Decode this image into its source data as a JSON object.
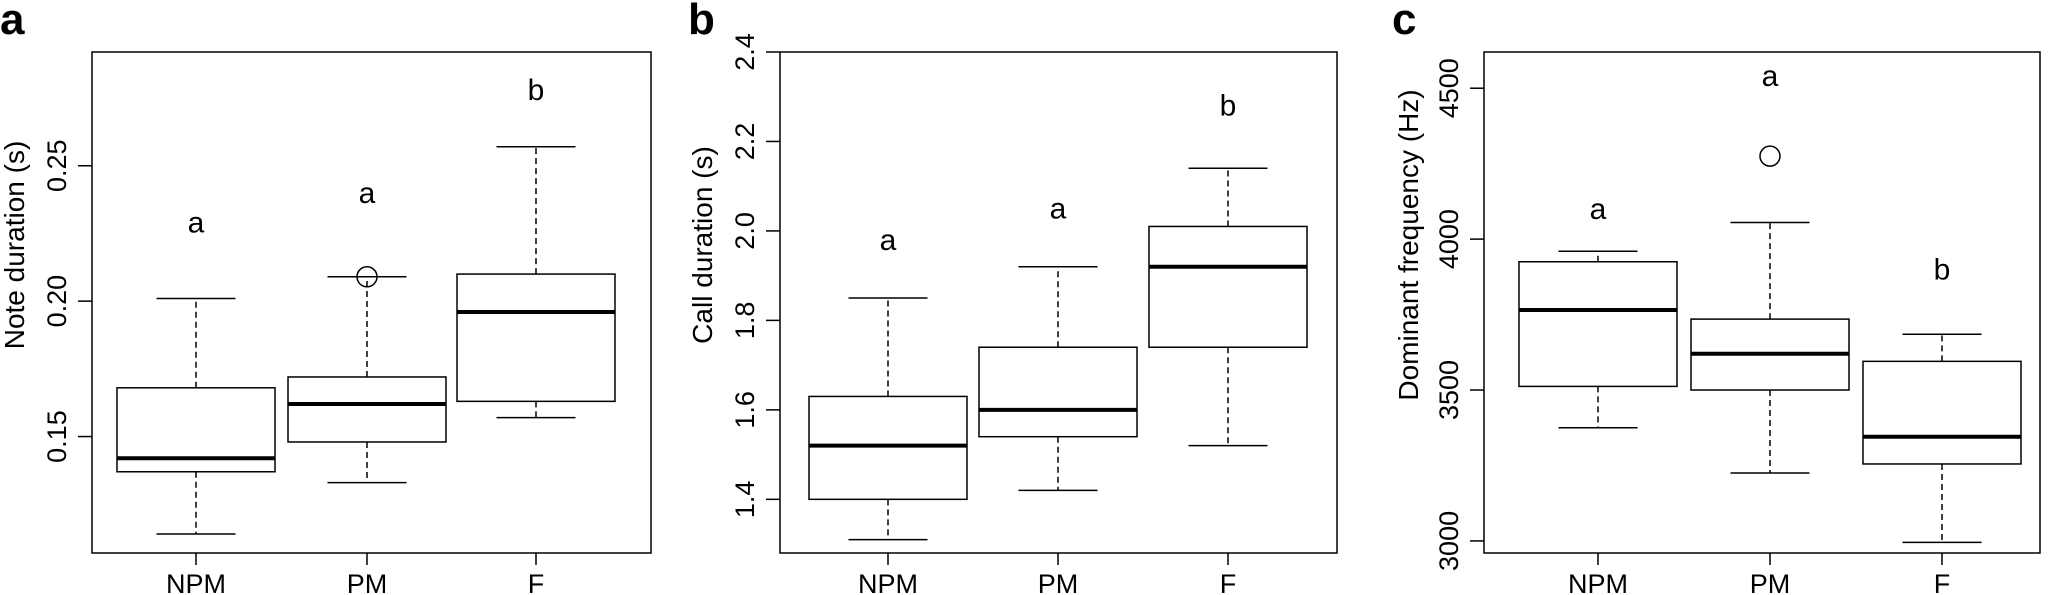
{
  "chart_data": [
    {
      "type": "box",
      "panel_label": "a",
      "ylabel": "Note duration (s)",
      "categories": [
        "NPM",
        "PM",
        "F"
      ],
      "yticks": [
        0.15,
        0.2,
        0.25
      ],
      "ytick_labels": [
        "0.15",
        "0.20",
        "0.25"
      ],
      "ylim": [
        0.107,
        0.292
      ],
      "boxes": [
        {
          "category": "NPM",
          "whisker_low": 0.114,
          "q1": 0.137,
          "median": 0.142,
          "q3": 0.168,
          "whisker_high": 0.201,
          "outliers": []
        },
        {
          "category": "PM",
          "whisker_low": 0.133,
          "q1": 0.148,
          "median": 0.162,
          "q3": 0.172,
          "whisker_high": 0.209,
          "outliers": [
            0.209
          ]
        },
        {
          "category": "F",
          "whisker_low": 0.157,
          "q1": 0.163,
          "median": 0.196,
          "q3": 0.21,
          "whisker_high": 0.257,
          "outliers": []
        }
      ],
      "significance_letters": [
        {
          "category": "NPM",
          "letter": "a",
          "y": 0.229
        },
        {
          "category": "PM",
          "letter": "a",
          "y": 0.24
        },
        {
          "category": "F",
          "letter": "b",
          "y": 0.278
        }
      ]
    },
    {
      "type": "box",
      "panel_label": "b",
      "ylabel": "Call duration (s)",
      "categories": [
        "NPM",
        "PM",
        "F"
      ],
      "yticks": [
        1.4,
        1.6,
        1.8,
        2.0,
        2.2,
        2.4
      ],
      "ytick_labels": [
        "1.4",
        "1.6",
        "1.8",
        "2.0",
        "2.2",
        "2.4"
      ],
      "ylim": [
        1.28,
        2.4
      ],
      "boxes": [
        {
          "category": "NPM",
          "whisker_low": 1.31,
          "q1": 1.4,
          "median": 1.52,
          "q3": 1.63,
          "whisker_high": 1.85,
          "outliers": []
        },
        {
          "category": "PM",
          "whisker_low": 1.42,
          "q1": 1.54,
          "median": 1.6,
          "q3": 1.74,
          "whisker_high": 1.92,
          "outliers": []
        },
        {
          "category": "F",
          "whisker_low": 1.52,
          "q1": 1.74,
          "median": 1.92,
          "q3": 2.01,
          "whisker_high": 2.14,
          "outliers": []
        }
      ],
      "significance_letters": [
        {
          "category": "NPM",
          "letter": "a",
          "y": 1.98
        },
        {
          "category": "PM",
          "letter": "a",
          "y": 2.05
        },
        {
          "category": "F",
          "letter": "b",
          "y": 2.28
        }
      ]
    },
    {
      "type": "box",
      "panel_label": "c",
      "ylabel": "Dominant frequency (Hz)",
      "categories": [
        "NPM",
        "PM",
        "F"
      ],
      "yticks": [
        3000,
        3500,
        4000,
        4500
      ],
      "ytick_labels": [
        "3000",
        "3500",
        "4000",
        "4500"
      ],
      "ylim": [
        2960,
        4620
      ],
      "boxes": [
        {
          "category": "NPM",
          "whisker_low": 3375,
          "q1": 3512,
          "median": 3765,
          "q3": 3925,
          "whisker_high": 3960,
          "outliers": []
        },
        {
          "category": "PM",
          "whisker_low": 3225,
          "q1": 3500,
          "median": 3620,
          "q3": 3735,
          "whisker_high": 4055,
          "outliers": [
            4275
          ]
        },
        {
          "category": "F",
          "whisker_low": 2995,
          "q1": 3255,
          "median": 3345,
          "q3": 3595,
          "whisker_high": 3685,
          "outliers": []
        }
      ],
      "significance_letters": [
        {
          "category": "NPM",
          "letter": "a",
          "y": 4100
        },
        {
          "category": "PM",
          "letter": "a",
          "y": 4540
        },
        {
          "category": "F",
          "letter": "b",
          "y": 3900
        }
      ]
    }
  ]
}
